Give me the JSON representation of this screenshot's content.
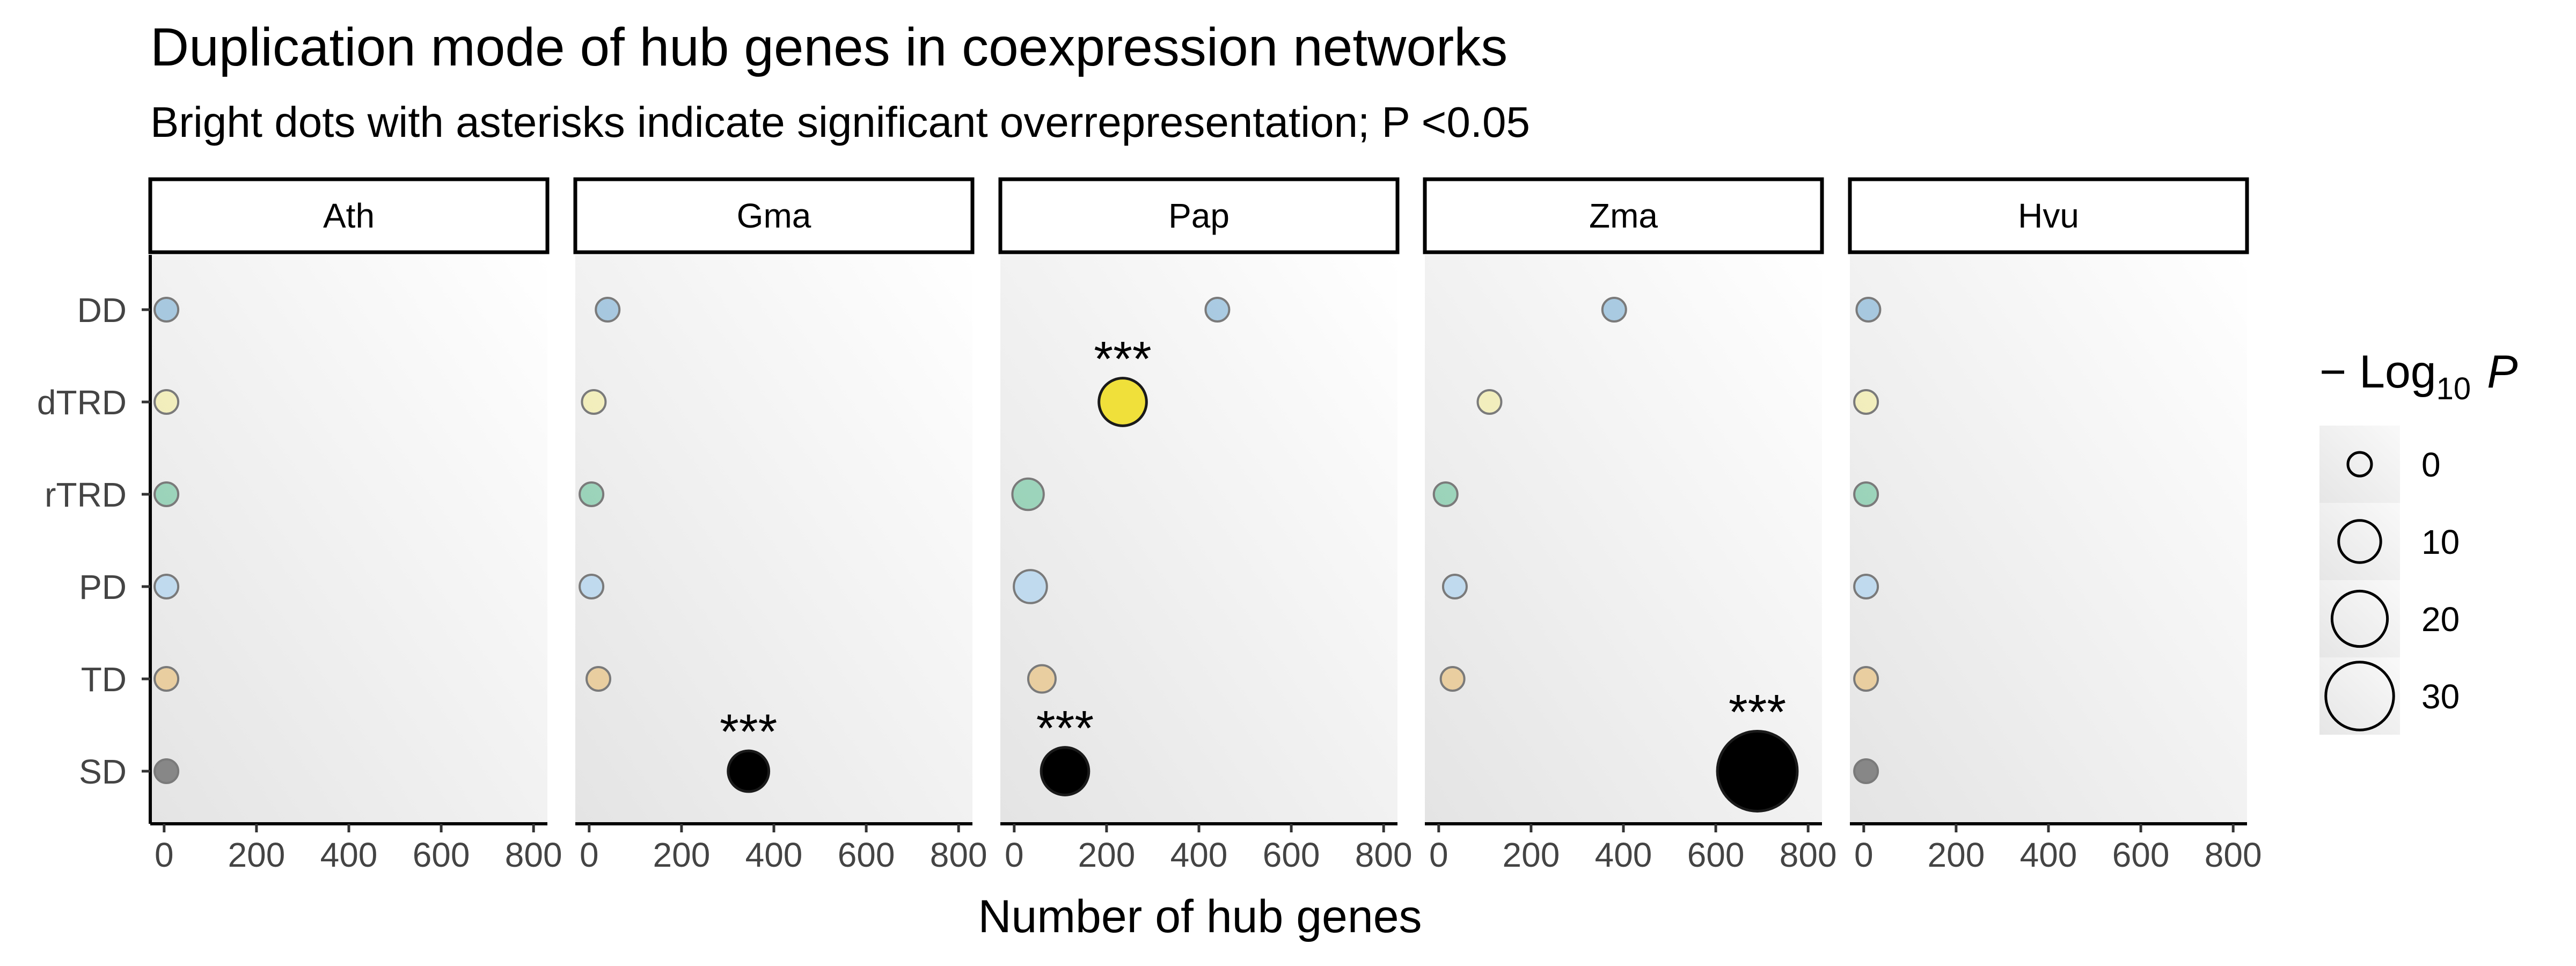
{
  "chart_data": {
    "type": "scatter",
    "title": "Duplication mode of hub genes in coexpression networks",
    "subtitle": "Bright dots with asterisks indicate significant overrepresentation; P <0.05",
    "xlabel": "Number of hub genes",
    "xlim": [
      -30,
      830
    ],
    "xticks": [
      0,
      200,
      400,
      600,
      800
    ],
    "categories": [
      "DD",
      "dTRD",
      "rTRD",
      "PD",
      "TD",
      "SD"
    ],
    "facets": [
      "Ath",
      "Gma",
      "Pap",
      "Zma",
      "Hvu"
    ],
    "category_colors": {
      "DD": "#7fb2d6",
      "dTRD": "#f2eda2",
      "rTRD": "#70c6a0",
      "PD": "#a9d1ef",
      "TD": "#e9c07a",
      "SD": "#555555"
    },
    "significant_color": {
      "dTRD": "#f0e03a",
      "SD": "#000000"
    },
    "points": [
      {
        "facet": "Ath",
        "category": "DD",
        "x": 5,
        "neglog10p": 0,
        "significant": false
      },
      {
        "facet": "Ath",
        "category": "dTRD",
        "x": 5,
        "neglog10p": 0,
        "significant": false
      },
      {
        "facet": "Ath",
        "category": "rTRD",
        "x": 5,
        "neglog10p": 0,
        "significant": false
      },
      {
        "facet": "Ath",
        "category": "PD",
        "x": 5,
        "neglog10p": 0,
        "significant": false
      },
      {
        "facet": "Ath",
        "category": "TD",
        "x": 5,
        "neglog10p": 0,
        "significant": false
      },
      {
        "facet": "Ath",
        "category": "SD",
        "x": 5,
        "neglog10p": 0,
        "significant": false
      },
      {
        "facet": "Gma",
        "category": "DD",
        "x": 40,
        "neglog10p": 0,
        "significant": false
      },
      {
        "facet": "Gma",
        "category": "dTRD",
        "x": 10,
        "neglog10p": 0,
        "significant": false
      },
      {
        "facet": "Gma",
        "category": "rTRD",
        "x": 5,
        "neglog10p": 0,
        "significant": false
      },
      {
        "facet": "Gma",
        "category": "PD",
        "x": 5,
        "neglog10p": 0,
        "significant": false
      },
      {
        "facet": "Gma",
        "category": "TD",
        "x": 20,
        "neglog10p": 0,
        "significant": false
      },
      {
        "facet": "Gma",
        "category": "SD",
        "x": 345,
        "neglog10p": 9,
        "significant": true
      },
      {
        "facet": "Pap",
        "category": "DD",
        "x": 440,
        "neglog10p": 0,
        "significant": false
      },
      {
        "facet": "Pap",
        "category": "dTRD",
        "x": 235,
        "neglog10p": 14,
        "significant": true
      },
      {
        "facet": "Pap",
        "category": "rTRD",
        "x": 30,
        "neglog10p": 3,
        "significant": false
      },
      {
        "facet": "Pap",
        "category": "PD",
        "x": 35,
        "neglog10p": 4,
        "significant": false
      },
      {
        "facet": "Pap",
        "category": "TD",
        "x": 60,
        "neglog10p": 1,
        "significant": false
      },
      {
        "facet": "Pap",
        "category": "SD",
        "x": 110,
        "neglog10p": 14,
        "significant": true
      },
      {
        "facet": "Zma",
        "category": "DD",
        "x": 380,
        "neglog10p": 0,
        "significant": false
      },
      {
        "facet": "Zma",
        "category": "dTRD",
        "x": 110,
        "neglog10p": 0,
        "significant": false
      },
      {
        "facet": "Zma",
        "category": "rTRD",
        "x": 15,
        "neglog10p": 0,
        "significant": false
      },
      {
        "facet": "Zma",
        "category": "PD",
        "x": 35,
        "neglog10p": 0,
        "significant": false
      },
      {
        "facet": "Zma",
        "category": "TD",
        "x": 30,
        "neglog10p": 0,
        "significant": false
      },
      {
        "facet": "Zma",
        "category": "SD",
        "x": 690,
        "neglog10p": 40,
        "significant": true
      },
      {
        "facet": "Hvu",
        "category": "DD",
        "x": 10,
        "neglog10p": 0,
        "significant": false
      },
      {
        "facet": "Hvu",
        "category": "dTRD",
        "x": 5,
        "neglog10p": 0,
        "significant": false
      },
      {
        "facet": "Hvu",
        "category": "rTRD",
        "x": 5,
        "neglog10p": 0,
        "significant": false
      },
      {
        "facet": "Hvu",
        "category": "PD",
        "x": 5,
        "neglog10p": 0,
        "significant": false
      },
      {
        "facet": "Hvu",
        "category": "TD",
        "x": 5,
        "neglog10p": 0,
        "significant": false
      },
      {
        "facet": "Hvu",
        "category": "SD",
        "x": 5,
        "neglog10p": 0,
        "significant": false
      }
    ],
    "significance_marker": "***",
    "legend": {
      "title_prefix": "− Log",
      "title_subscript": "10",
      "title_suffix": "P",
      "sizes": [
        0,
        10,
        20,
        30
      ],
      "labels": [
        "0",
        "10",
        "20",
        "30"
      ],
      "placement": "right"
    },
    "grid": false
  }
}
